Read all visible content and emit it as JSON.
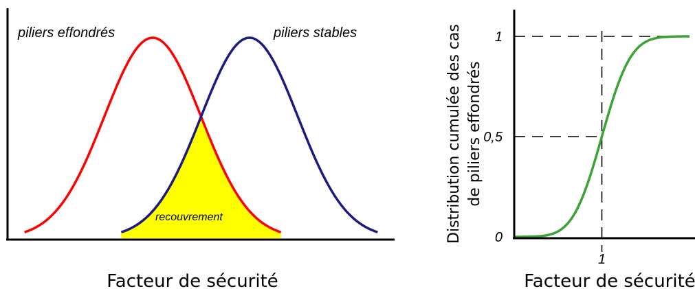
{
  "chart_data": [
    {
      "type": "line",
      "title": "",
      "xlabel": "Facteur de sécurité",
      "ylabel": "",
      "series": [
        {
          "name": "piliers effondrés",
          "color": "#ff0000",
          "mean": 0,
          "sd": 1
        },
        {
          "name": "piliers stables",
          "color": "#1a1a80",
          "mean": 2,
          "sd": 1
        }
      ],
      "xlim": [
        -3,
        5
      ],
      "overlap": {
        "label": "recouvrement",
        "color": "#ffff00"
      },
      "grid": false,
      "legend": "none"
    },
    {
      "type": "line",
      "title": "",
      "xlabel": "Facteur de sécurité",
      "ylabel_lines": [
        "Distribution cumulée des cas",
        "de piliers effondrés"
      ],
      "series": [
        {
          "name": "",
          "color": "#3aa335",
          "shape": "cumulative-normal",
          "mean": 1,
          "sd": 0.26
        }
      ],
      "xlim": [
        0,
        2
      ],
      "ylim": [
        0,
        1
      ],
      "yticks": [
        {
          "value": 0,
          "label": "0"
        },
        {
          "value": 0.5,
          "label": "0,5"
        },
        {
          "value": 1,
          "label": "1"
        }
      ],
      "xticks": [
        {
          "value": 1,
          "label": "1"
        }
      ],
      "reference_lines": {
        "x": 1,
        "y": [
          0.5,
          1
        ],
        "style": "dashed"
      },
      "grid": false,
      "legend": "none"
    }
  ]
}
